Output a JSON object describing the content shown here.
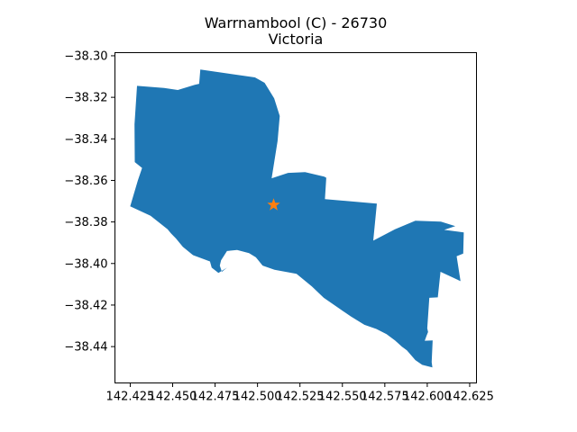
{
  "chart_data": {
    "type": "map",
    "title": "Warrnambool (C) - 26730",
    "subtitle": "Victoria",
    "xlabel": "",
    "ylabel": "",
    "xlim": [
      142.416,
      142.629
    ],
    "ylim": [
      -38.4575,
      -38.2985
    ],
    "x_ticks": [
      142.425,
      142.45,
      142.475,
      142.5,
      142.525,
      142.55,
      142.575,
      142.6,
      142.625
    ],
    "x_tick_labels": [
      "142.425",
      "142.450",
      "142.475",
      "142.500",
      "142.525",
      "142.550",
      "142.575",
      "142.600",
      "142.625"
    ],
    "y_ticks": [
      -38.3,
      -38.32,
      -38.34,
      -38.36,
      -38.38,
      -38.4,
      -38.42,
      -38.44
    ],
    "y_tick_labels": [
      "−38.30",
      "−38.32",
      "−38.34",
      "−38.36",
      "−38.38",
      "−38.40",
      "−38.42",
      "−38.44"
    ],
    "grid": false,
    "region_color": "#1f77b4",
    "marker_color": "#ff7f0e",
    "region_polygon": [
      [
        142.429,
        -38.3145
      ],
      [
        142.445,
        -38.3155
      ],
      [
        142.453,
        -38.3165
      ],
      [
        142.463,
        -38.314
      ],
      [
        142.4656,
        -38.3135
      ],
      [
        142.4663,
        -38.3066
      ],
      [
        142.4985,
        -38.3104
      ],
      [
        142.5042,
        -38.313
      ],
      [
        142.5098,
        -38.3205
      ],
      [
        142.5131,
        -38.329
      ],
      [
        142.5118,
        -38.341
      ],
      [
        142.5083,
        -38.359
      ],
      [
        142.518,
        -38.3564
      ],
      [
        142.528,
        -38.356
      ],
      [
        142.5393,
        -38.3582
      ],
      [
        142.5405,
        -38.3587
      ],
      [
        142.5397,
        -38.369
      ],
      [
        142.5703,
        -38.3712
      ],
      [
        142.5682,
        -38.389
      ],
      [
        142.581,
        -38.3835
      ],
      [
        142.593,
        -38.3794
      ],
      [
        142.608,
        -38.3798
      ],
      [
        142.6165,
        -38.382
      ],
      [
        142.61,
        -38.3838
      ],
      [
        142.6215,
        -38.385
      ],
      [
        142.6212,
        -38.3952
      ],
      [
        142.6173,
        -38.3965
      ],
      [
        142.6196,
        -38.4085
      ],
      [
        142.6078,
        -38.404
      ],
      [
        142.6062,
        -38.4163
      ],
      [
        142.6012,
        -38.4165
      ],
      [
        142.6,
        -38.4312
      ],
      [
        142.6005,
        -38.433
      ],
      [
        142.5996,
        -38.4347
      ],
      [
        142.5985,
        -38.4372
      ],
      [
        142.6032,
        -38.437
      ],
      [
        142.6026,
        -38.4475
      ],
      [
        142.603,
        -38.45
      ],
      [
        142.597,
        -38.4488
      ],
      [
        142.593,
        -38.4465
      ],
      [
        142.588,
        -38.4418
      ],
      [
        142.585,
        -38.44
      ],
      [
        142.581,
        -38.437
      ],
      [
        142.576,
        -38.434
      ],
      [
        142.57,
        -38.4315
      ],
      [
        142.563,
        -38.4295
      ],
      [
        142.555,
        -38.4255
      ],
      [
        142.547,
        -38.421
      ],
      [
        142.539,
        -38.4165
      ],
      [
        142.532,
        -38.411
      ],
      [
        142.523,
        -38.405
      ],
      [
        142.51,
        -38.403
      ],
      [
        142.503,
        -38.401
      ],
      [
        142.499,
        -38.397
      ],
      [
        142.495,
        -38.395
      ],
      [
        142.488,
        -38.3935
      ],
      [
        142.482,
        -38.394
      ],
      [
        142.4785,
        -38.3985
      ],
      [
        142.4778,
        -38.401
      ],
      [
        142.479,
        -38.404
      ],
      [
        142.482,
        -38.402
      ],
      [
        142.477,
        -38.4045
      ],
      [
        142.473,
        -38.402
      ],
      [
        142.472,
        -38.399
      ],
      [
        142.467,
        -38.3975
      ],
      [
        142.462,
        -38.396
      ],
      [
        142.456,
        -38.392
      ],
      [
        142.452,
        -38.388
      ],
      [
        142.449,
        -38.3855
      ],
      [
        142.447,
        -38.3835
      ],
      [
        142.437,
        -38.377
      ],
      [
        142.425,
        -38.3725
      ],
      [
        142.4295,
        -38.36
      ],
      [
        142.432,
        -38.354
      ],
      [
        142.4277,
        -38.3512
      ],
      [
        142.4275,
        -38.333
      ]
    ],
    "marker": {
      "x": 142.5095,
      "y": -38.3718,
      "symbol": "star"
    }
  }
}
